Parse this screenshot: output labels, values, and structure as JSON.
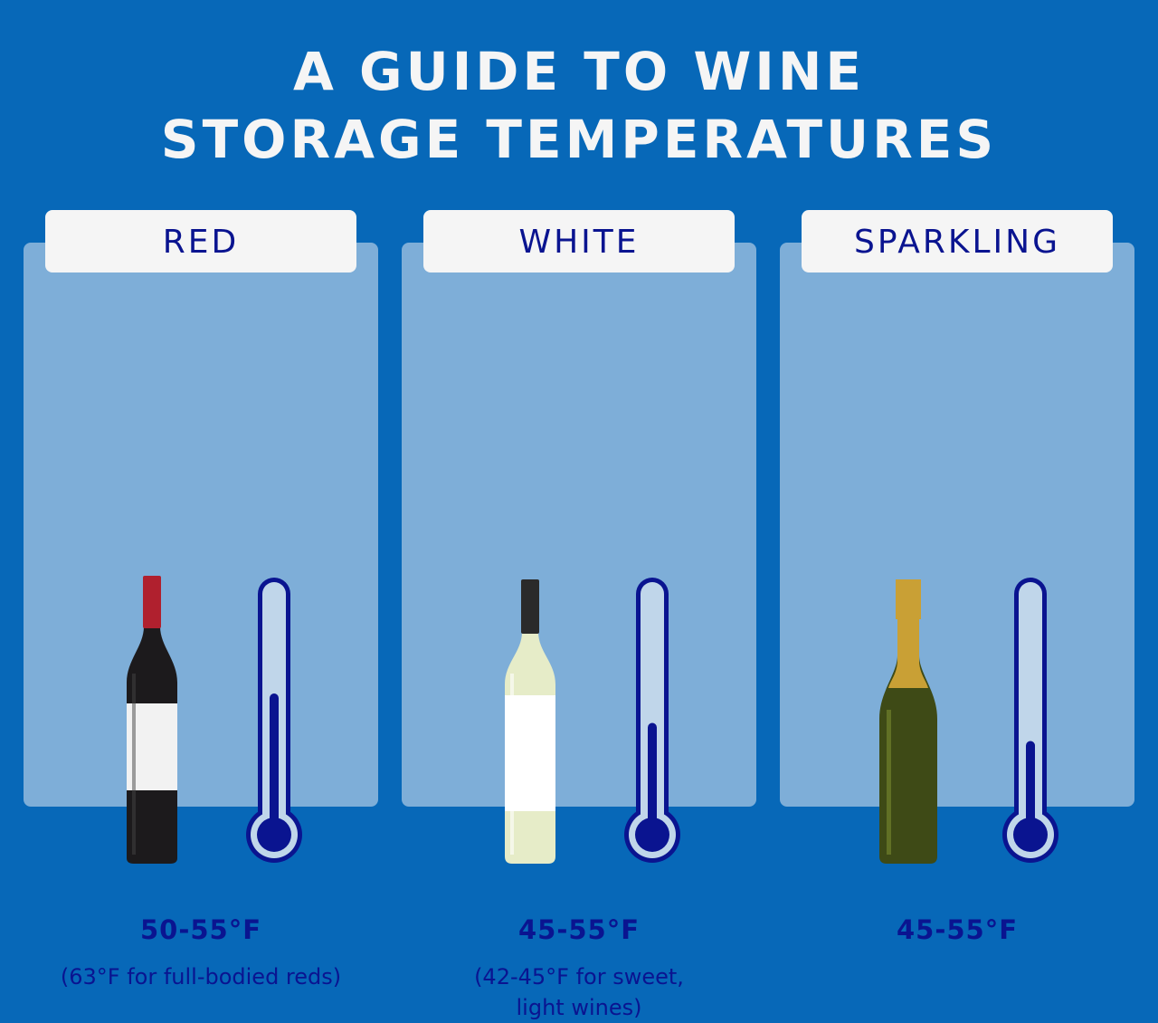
{
  "title_line1": "A GUIDE TO WINE",
  "title_line2": "STORAGE TEMPERATURES",
  "colors": {
    "background": "#0768b8",
    "panel": "#7eaed8",
    "text": "#0a1490",
    "thermometer_fill": "#c0d6ea"
  },
  "wines": [
    {
      "name": "RED",
      "temp": "50-55°F",
      "note": "(63°F for full-bodied reds)",
      "thermometer_level": 0.56,
      "bottle": "red-wine-bottle"
    },
    {
      "name": "WHITE",
      "temp": "45-55°F",
      "note": "(42-45°F for sweet, light wines)",
      "thermometer_level": 0.43,
      "bottle": "white-wine-bottle"
    },
    {
      "name": "SPARKLING",
      "temp": "45-55°F",
      "note": "",
      "thermometer_level": 0.35,
      "bottle": "sparkling-wine-bottle"
    }
  ]
}
